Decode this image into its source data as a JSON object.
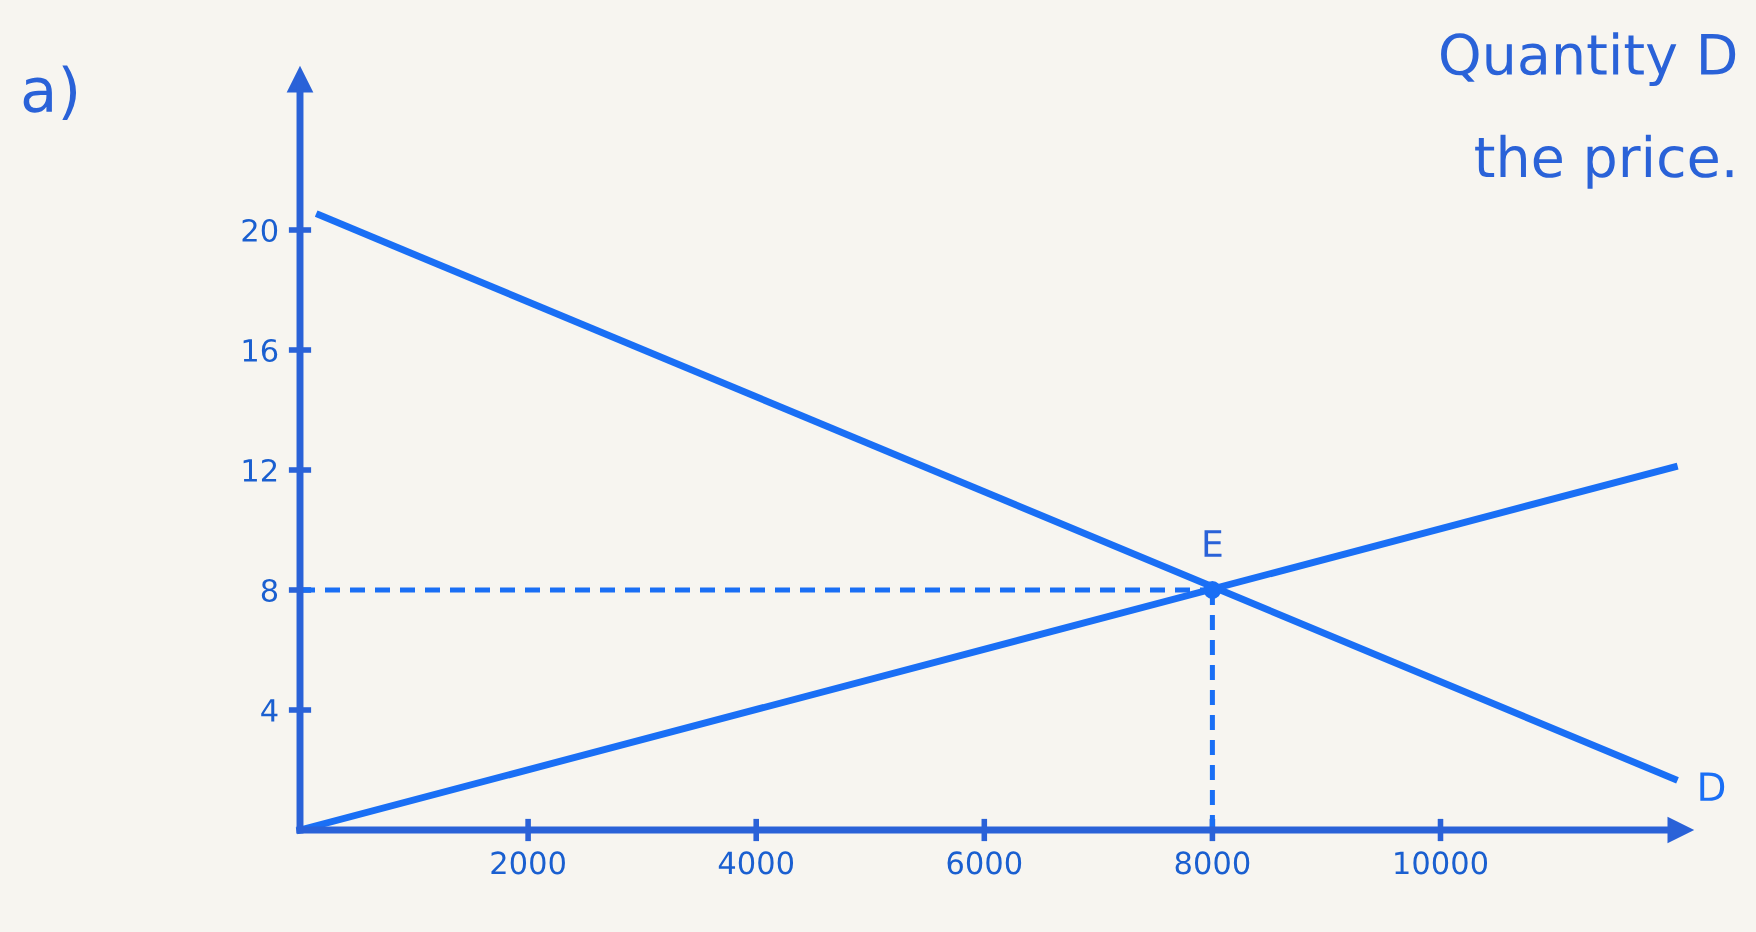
{
  "chart_data": {
    "type": "line",
    "title": "a)",
    "annotations": [
      "Quantity D",
      "the price.",
      {
        "text": "E",
        "x": 8000,
        "y": 8
      }
    ],
    "series": [
      {
        "name": "D",
        "color": "#1a6ff5",
        "x": [
          170,
          12050
        ],
        "values": [
          20.5,
          1.7
        ]
      },
      {
        "color": "#1a6ff5",
        "x": [
          0,
          12050
        ],
        "values": [
          0,
          12.1
        ]
      },
      {
        "color": "#1a6ff5",
        "x": [
          0,
          8000
        ],
        "values": [
          8,
          8
        ],
        "line_style": "dashed"
      },
      {
        "color": "#1a6ff5",
        "x": [
          8000,
          8000
        ],
        "values": [
          8,
          0
        ],
        "line_style": "dashed"
      },
      {
        "type": "scatter",
        "color": "#1a6ff5",
        "x": [
          8000
        ],
        "values": [
          8
        ]
      }
    ],
    "xlim": [
      0,
      12100
    ],
    "ylim": [
      0,
      25
    ],
    "xticks": [
      2000,
      4000,
      6000,
      8000,
      10000
    ],
    "yticks": [
      4,
      8,
      12,
      16,
      20
    ],
    "grid": false,
    "legend": false
  }
}
